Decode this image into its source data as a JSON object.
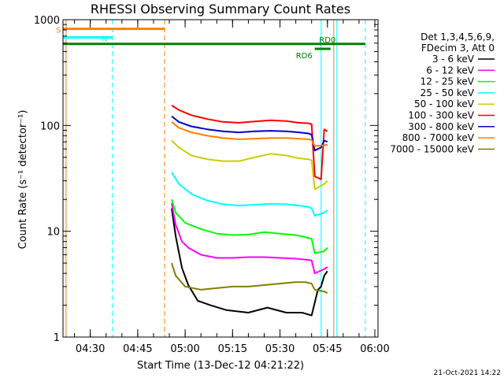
{
  "chart_data": {
    "type": "line",
    "title": "RHESSI Observing Summary Count Rates",
    "xlabel": "Start Time (13-Dec-12 04:21:22)",
    "ylabel": "Count Rate (s⁻¹ detector⁻¹)",
    "x_ticks": [
      "04:30",
      "04:45",
      "05:00",
      "05:15",
      "05:30",
      "05:45",
      "06:00"
    ],
    "x_range": [
      "04:21:22",
      "06:01:00"
    ],
    "y_scale": "log",
    "y_ticks": [
      "1",
      "10",
      "100",
      "1000"
    ],
    "ylim": [
      1,
      1000
    ],
    "legend_header": [
      "Det 1,3,4,5,6,9,",
      "FDecim 3, Att 0"
    ],
    "series": [
      {
        "name": "3 - 6 keV",
        "color": "#000000",
        "x": [
          "04:55:45",
          "04:57:00",
          "04:59:00",
          "05:01:00",
          "05:04:00",
          "05:08:00",
          "05:13:00",
          "05:20:00",
          "05:26:00",
          "05:32:00",
          "05:37:00",
          "05:40:00",
          "05:42:00",
          "05:43:00",
          "05:44:00",
          "05:45:00"
        ],
        "values": [
          16.5,
          9.0,
          4.5,
          3.1,
          2.2,
          2.0,
          1.8,
          1.7,
          1.9,
          1.7,
          1.7,
          1.6,
          2.8,
          3.0,
          3.8,
          4.2
        ]
      },
      {
        "name": "6 - 12 keV",
        "color": "#ff00ff",
        "x": [
          "04:55:45",
          "04:57:00",
          "04:59:00",
          "05:01:00",
          "05:05:00",
          "05:10:00",
          "05:15:00",
          "05:20:00",
          "05:25:00",
          "05:30:00",
          "05:35:00",
          "05:38:00",
          "05:40:00",
          "05:41:00",
          "05:44:00",
          "05:45:00"
        ],
        "values": [
          18.5,
          11.5,
          8.0,
          7.0,
          6.0,
          5.6,
          5.6,
          5.7,
          5.7,
          5.6,
          5.5,
          5.4,
          5.3,
          4.0,
          4.4,
          4.6
        ]
      },
      {
        "name": "12 - 25 keV",
        "color": "#00ff00",
        "x": [
          "04:55:45",
          "04:57:00",
          "05:00:00",
          "05:05:00",
          "05:10:00",
          "05:15:00",
          "05:20:00",
          "05:25:00",
          "05:30:00",
          "05:35:00",
          "05:38:00",
          "05:40:00",
          "05:41:00",
          "05:44:00",
          "05:45:00"
        ],
        "values": [
          20.0,
          15.0,
          12.0,
          10.5,
          9.5,
          9.2,
          9.3,
          9.8,
          9.5,
          9.2,
          8.8,
          8.5,
          6.2,
          6.5,
          7.0
        ]
      },
      {
        "name": "25 - 50 keV",
        "color": "#00ffff",
        "x": [
          "04:55:45",
          "04:58:00",
          "05:02:00",
          "05:07:00",
          "05:12:00",
          "05:17:00",
          "05:22:00",
          "05:27:00",
          "05:32:00",
          "05:36:00",
          "05:39:00",
          "05:40:00",
          "05:41:00",
          "05:44:00",
          "05:45:00"
        ],
        "values": [
          36.0,
          28.0,
          22.5,
          19.5,
          18.0,
          17.5,
          17.8,
          18.2,
          18.0,
          17.5,
          17.0,
          16.5,
          14.0,
          15.0,
          15.8
        ]
      },
      {
        "name": "50 - 100 keV",
        "color": "#cccc00",
        "x": [
          "04:55:45",
          "04:58:00",
          "05:02:00",
          "05:07:00",
          "05:12:00",
          "05:17:00",
          "05:22:00",
          "05:27:00",
          "05:32:00",
          "05:36:00",
          "05:39:00",
          "05:40:00",
          "05:41:00",
          "05:44:00",
          "05:45:00"
        ],
        "values": [
          72.0,
          62.0,
          52.0,
          48.0,
          46.0,
          46.0,
          50.0,
          54.0,
          52.0,
          49.0,
          48.0,
          47.0,
          25.0,
          28.0,
          30.0
        ]
      },
      {
        "name": "100 - 300 keV",
        "color": "#ff0000",
        "x": [
          "04:55:45",
          "04:58:00",
          "05:02:00",
          "05:07:00",
          "05:12:00",
          "05:17:00",
          "05:22:00",
          "05:27:00",
          "05:32:00",
          "05:36:00",
          "05:39:00",
          "05:40:00",
          "05:41:00",
          "05:43:00",
          "05:44:00",
          "05:45:00"
        ],
        "values": [
          155.0,
          140.0,
          125.0,
          115.0,
          108.0,
          106.0,
          109.0,
          112.0,
          110.0,
          106.0,
          105.0,
          103.0,
          33.0,
          31.0,
          92.0,
          88.0
        ]
      },
      {
        "name": "300 - 800 keV",
        "color": "#0000cc",
        "x": [
          "04:55:45",
          "04:58:00",
          "05:02:00",
          "05:07:00",
          "05:12:00",
          "05:17:00",
          "05:22:00",
          "05:27:00",
          "05:32:00",
          "05:36:00",
          "05:39:00",
          "05:40:00",
          "05:41:00",
          "05:43:00",
          "05:44:00",
          "05:45:00"
        ],
        "values": [
          122.0,
          108.0,
          98.0,
          92.0,
          88.0,
          86.0,
          88.0,
          89.0,
          88.0,
          86.0,
          84.0,
          82.0,
          58.0,
          62.0,
          72.0,
          70.0
        ]
      },
      {
        "name": "800 - 7000 keV",
        "color": "#ff8000",
        "x": [
          "04:55:45",
          "04:58:00",
          "05:02:00",
          "05:07:00",
          "05:12:00",
          "05:17:00",
          "05:22:00",
          "05:27:00",
          "05:32:00",
          "05:36:00",
          "05:39:00",
          "05:40:00",
          "05:41:00",
          "05:44:00",
          "05:45:00"
        ],
        "values": [
          108.0,
          95.0,
          86.0,
          80.0,
          76.0,
          74.0,
          75.0,
          76.0,
          76.0,
          75.0,
          74.0,
          73.0,
          64.0,
          65.0,
          66.0
        ]
      },
      {
        "name": "7000 - 15000 keV",
        "color": "#808000",
        "x": [
          "04:55:45",
          "04:57:00",
          "05:00:00",
          "05:05:00",
          "05:10:00",
          "05:15:00",
          "05:20:00",
          "05:25:00",
          "05:30:00",
          "05:35:00",
          "05:38:00",
          "05:40:00",
          "05:41:00",
          "05:44:00",
          "05:45:00"
        ],
        "values": [
          5.0,
          3.8,
          3.0,
          2.8,
          2.9,
          3.0,
          3.0,
          3.1,
          3.2,
          3.3,
          3.3,
          3.2,
          2.8,
          2.7,
          2.6
        ]
      }
    ],
    "flag_markers": [
      {
        "label": "S",
        "color": "#ff8000",
        "x_start": "04:21:22",
        "x_end": "04:53:30",
        "y": 820
      },
      {
        "label": "N",
        "color": "#00ffff",
        "x_start": "04:21:22",
        "x_end": "04:37:00",
        "y": 680
      },
      {
        "label": "RD0",
        "color": "#008000",
        "x_start": "04:21:22",
        "x_end": "05:57:00",
        "y": 590
      },
      {
        "label": "RD6",
        "color": "#008000",
        "x_start": "05:41:00",
        "x_end": "05:46:00",
        "y": 530
      }
    ],
    "vertical_markers": [
      {
        "x": "04:22:20",
        "color": "#ff8000",
        "style": "solid"
      },
      {
        "x": "04:37:00",
        "color": "#00ffff",
        "style": "dashed"
      },
      {
        "x": "04:53:30",
        "color": "#ff8000",
        "style": "dashed"
      },
      {
        "x": "05:43:00",
        "color": "#00ffff",
        "style": "solid"
      },
      {
        "x": "05:48:00",
        "color": "#00ffff",
        "style": "solid"
      },
      {
        "x": "05:57:00",
        "color": "#00ffff",
        "style": "dashed"
      },
      {
        "x": "05:47:00",
        "color": "#ff8000",
        "style": "solid"
      }
    ]
  },
  "footer_date": "21-Oct-2021 14:22"
}
